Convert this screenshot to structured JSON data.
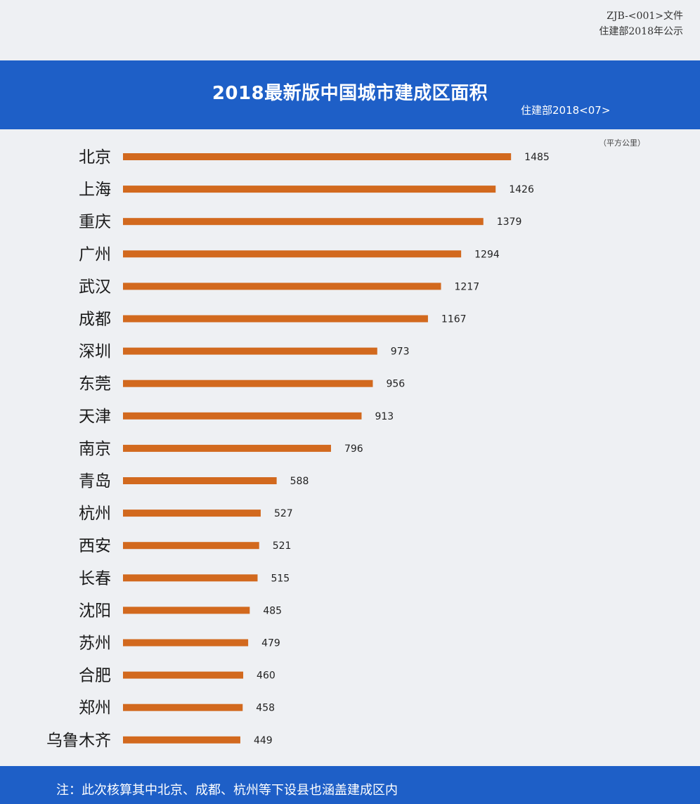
{
  "document_ref": {
    "code": "ZJB-<001>文件",
    "issuer": "住建部2018年公示"
  },
  "header": {
    "band_color": "#1e5fc7"
  },
  "footer": {
    "note": "注：此次核算其中北京、成都、杭州等下设县也涵盖建成区内"
  },
  "chart_data": {
    "type": "bar",
    "orientation": "horizontal",
    "title": "2018最新版中国城市建成区面积",
    "subtitle": "住建部2018<07>",
    "unit": "（平方公里）",
    "bar_color": "#d2691e",
    "xlim": [
      0,
      1600
    ],
    "categories": [
      "北京",
      "上海",
      "重庆",
      "广州",
      "武汉",
      "成都",
      "深圳",
      "东莞",
      "天津",
      "南京",
      "青岛",
      "杭州",
      "西安",
      "长春",
      "沈阳",
      "苏州",
      "合肥",
      "郑州",
      "乌鲁木齐"
    ],
    "values": [
      1485,
      1426,
      1379,
      1294,
      1217,
      1167,
      973,
      956,
      913,
      796,
      588,
      527,
      521,
      515,
      485,
      479,
      460,
      458,
      449
    ]
  }
}
